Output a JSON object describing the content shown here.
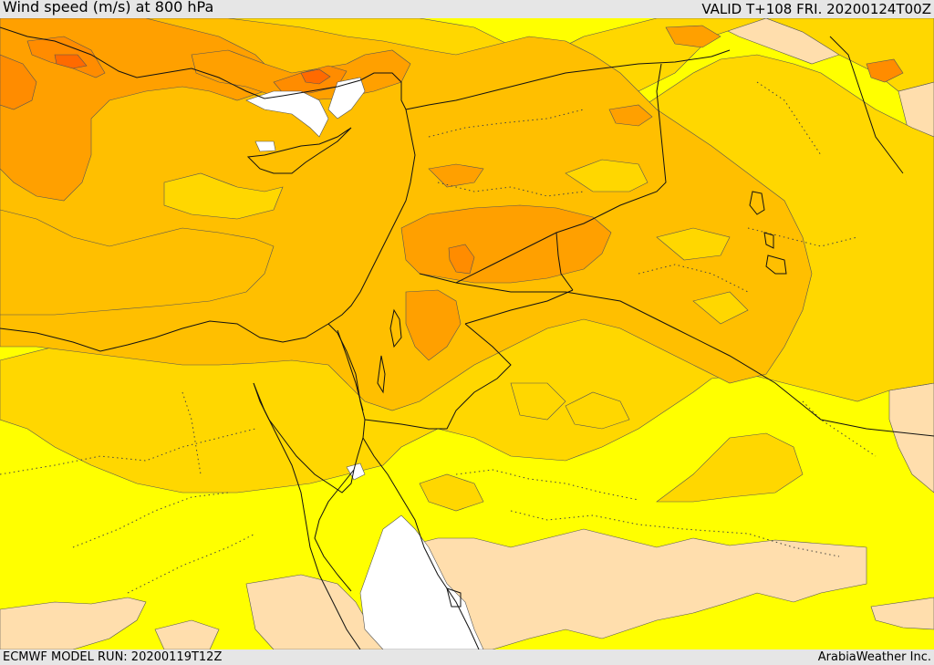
{
  "header": {
    "title": "Wind speed (m/s) at 800 hPa",
    "valid": "VALID T+108 FRI. 20200124T00Z"
  },
  "footer": {
    "model_run": "ECMWF MODEL RUN: 20200119T12Z",
    "credit": "ArabiaWeather Inc."
  },
  "map": {
    "variable": "wind speed",
    "units": "m/s",
    "level": "800 hPa",
    "colors": {
      "land_calm": "#ffdead",
      "level_yellow": "#ffff00",
      "level_gold": "#ffd700",
      "level_amber": "#ffbf00",
      "level_orange": "#ffa000",
      "level_dark_orange": "#ff8c00",
      "level_red_orange": "#ff6a00",
      "sea_calm": "#ffffff"
    }
  }
}
